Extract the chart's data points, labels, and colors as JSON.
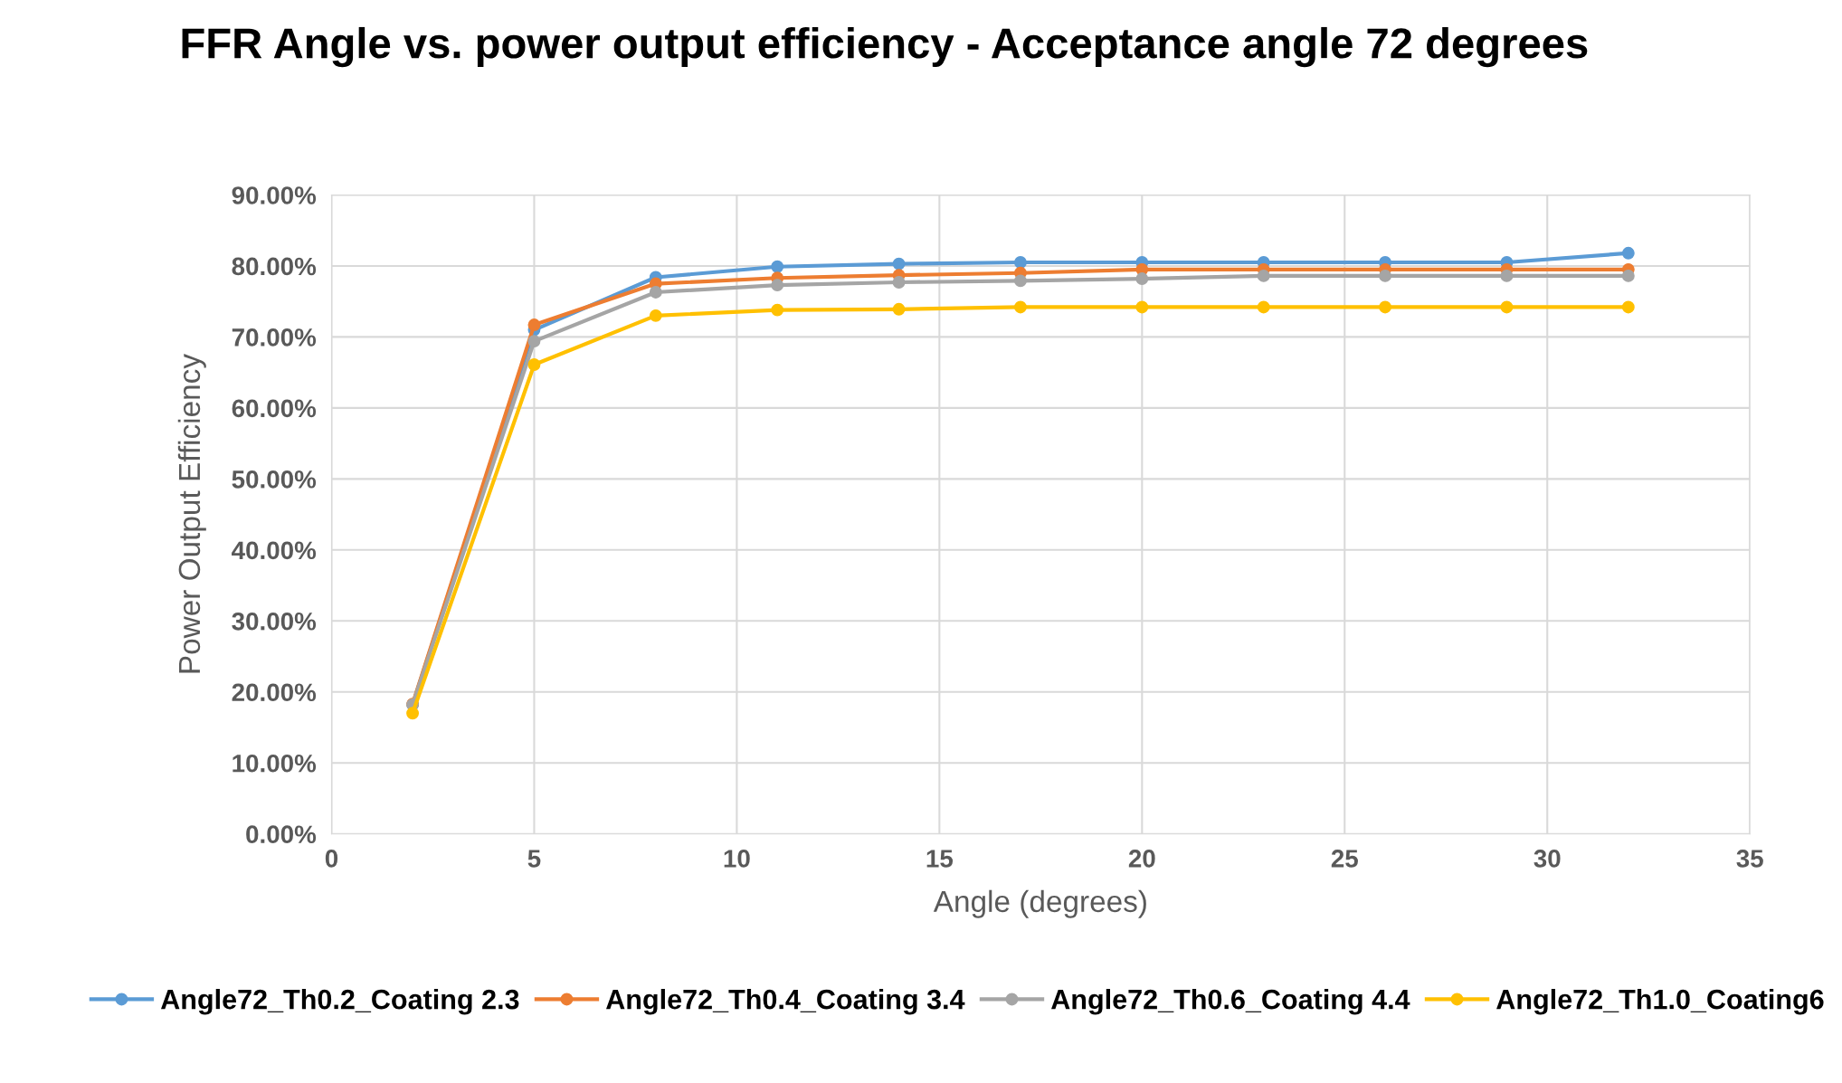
{
  "chart_data": {
    "type": "line",
    "title": "FFR Angle vs. power output efficiency - Acceptance angle 72 degrees",
    "xlabel": "Angle (degrees)",
    "ylabel": "Power Output Efficiency",
    "x": [
      2,
      5,
      8,
      11,
      14,
      17,
      20,
      23,
      26,
      29,
      32
    ],
    "series": [
      {
        "name": "Angle72_Th0.2_Coating 2.3",
        "color": "#5b9bd5",
        "values": [
          18.2,
          71.0,
          78.4,
          79.9,
          80.3,
          80.5,
          80.5,
          80.5,
          80.5,
          80.5,
          81.8
        ]
      },
      {
        "name": "Angle72_Th0.4_Coating 3.4",
        "color": "#ed7d31",
        "values": [
          18.3,
          71.7,
          77.5,
          78.3,
          78.7,
          79.0,
          79.5,
          79.5,
          79.5,
          79.5,
          79.5
        ]
      },
      {
        "name": "Angle72_Th0.6_Coating 4.4",
        "color": "#a5a5a5",
        "values": [
          18.2,
          69.4,
          76.3,
          77.3,
          77.7,
          77.9,
          78.2,
          78.6,
          78.6,
          78.6,
          78.6
        ]
      },
      {
        "name": "Angle72_Th1.0_Coating6",
        "color": "#ffc000",
        "values": [
          17.0,
          66.1,
          73.0,
          73.8,
          73.9,
          74.2,
          74.2,
          74.2,
          74.2,
          74.2,
          74.2
        ]
      }
    ],
    "xlim": [
      0,
      35
    ],
    "xticks": [
      0,
      5,
      10,
      15,
      20,
      25,
      30,
      35
    ],
    "ylim": [
      0,
      90
    ],
    "yticks": [
      {
        "value": 0,
        "label": "0.00%"
      },
      {
        "value": 10,
        "label": "10.00%"
      },
      {
        "value": 20,
        "label": "20.00%"
      },
      {
        "value": 30,
        "label": "30.00%"
      },
      {
        "value": 40,
        "label": "40.00%"
      },
      {
        "value": 50,
        "label": "50.00%"
      },
      {
        "value": 60,
        "label": "60.00%"
      },
      {
        "value": 70,
        "label": "70.00%"
      },
      {
        "value": 80,
        "label": "80.00%"
      },
      {
        "value": 90,
        "label": "90.00%"
      }
    ],
    "grid": true,
    "legend": "bottom",
    "marker": "circle",
    "line_style": "solid"
  }
}
